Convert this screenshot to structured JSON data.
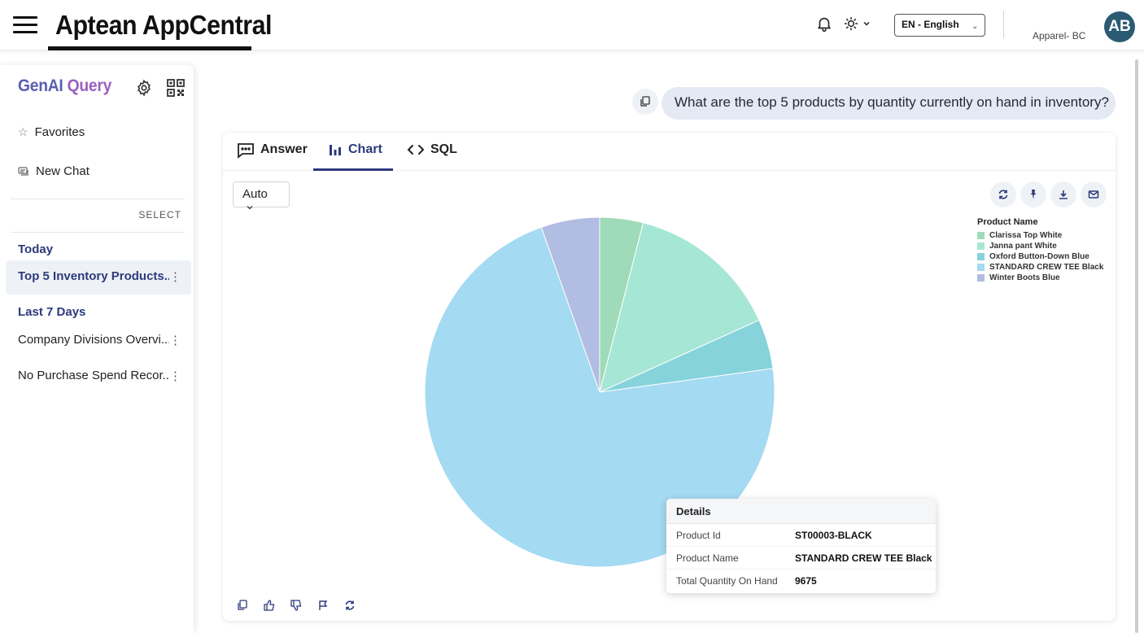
{
  "header": {
    "app_title": "Aptean AppCentral",
    "language": "EN - English",
    "company": "Apparel- BC",
    "avatar_initials": "AB"
  },
  "sidebar": {
    "title_main": "GenAI",
    "title_accent": "Query",
    "favorites_label": "Favorites",
    "new_chat_label": "New Chat",
    "select_label": "SELECT",
    "groups": [
      {
        "label": "Today",
        "items": [
          {
            "label": "Top 5 Inventory Products..."
          }
        ]
      },
      {
        "label": "Last 7 Days",
        "items": [
          {
            "label": "Company Divisions Overvi..."
          },
          {
            "label": "No Purchase Spend Recor..."
          }
        ]
      }
    ]
  },
  "question": "What are the top 5 products by quantity currently on hand in inventory?",
  "tabs": {
    "answer": "Answer",
    "chart": "Chart",
    "sql": "SQL"
  },
  "chart_type_select": "Auto",
  "chart_data": {
    "type": "pie",
    "legend_title": "Product Name",
    "legend_placement": "top-right",
    "slices": [
      {
        "name": "Clarissa Top White",
        "value": 540,
        "color": "#9fdbb8"
      },
      {
        "name": "Janna pant White",
        "value": 1920,
        "color": "#a6e6d4"
      },
      {
        "name": "Oxford Button-Down Blue",
        "value": 620,
        "color": "#86d3dc"
      },
      {
        "name": "STANDARD CREW TEE Black",
        "value": 9675,
        "color": "#a4daf2"
      },
      {
        "name": "Winter Boots Blue",
        "value": 730,
        "color": "#b1bde2"
      }
    ]
  },
  "tooltip": {
    "title": "Details",
    "rows": [
      {
        "key": "Product Id",
        "value": "ST00003-BLACK"
      },
      {
        "key": "Product Name",
        "value": "STANDARD CREW TEE Black"
      },
      {
        "key": "Total Quantity On Hand",
        "value": "9675"
      }
    ]
  }
}
